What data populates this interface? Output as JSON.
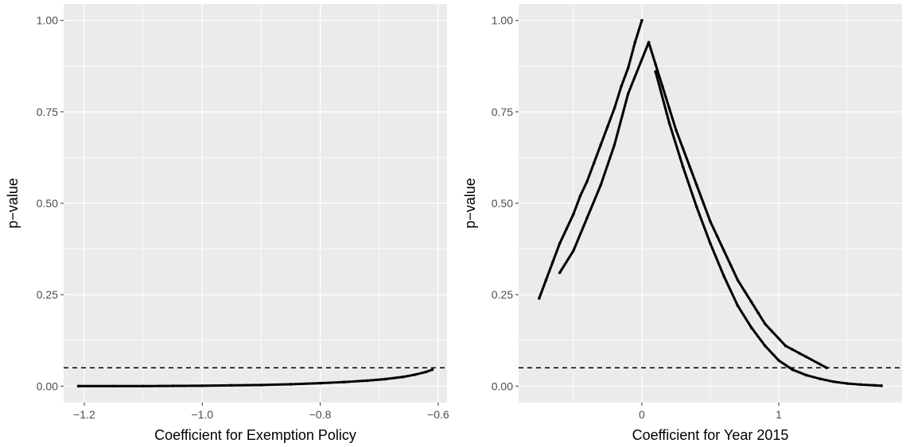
{
  "chart_data": [
    {
      "type": "scatter",
      "title": "",
      "xlabel": "Coefficient for Exemption Policy",
      "ylabel": "p−value",
      "xlim": [
        -1.235,
        -0.585
      ],
      "ylim": [
        -0.045,
        1.045
      ],
      "x_ticks": [
        -1.2,
        -1.0,
        -0.8,
        -0.6
      ],
      "x_tick_labels": [
        "−1.2",
        "−1.0",
        "−0.8",
        "−0.6"
      ],
      "y_ticks": [
        0,
        0.25,
        0.5,
        0.75,
        1
      ],
      "y_tick_labels": [
        "0.00",
        "0.25",
        "0.50",
        "0.75",
        "1.00"
      ],
      "reference_line": {
        "y": 0.05,
        "style": "dashed"
      },
      "grid": true,
      "series": [
        {
          "points": [
            [
              -1.21,
              0.0
            ],
            [
              -1.15,
              0.0
            ],
            [
              -1.1,
              0.0
            ],
            [
              -1.05,
              0.0005
            ],
            [
              -1.0,
              0.001
            ],
            [
              -0.95,
              0.002
            ],
            [
              -0.9,
              0.003
            ],
            [
              -0.85,
              0.005
            ],
            [
              -0.8,
              0.008
            ],
            [
              -0.76,
              0.011
            ],
            [
              -0.72,
              0.015
            ],
            [
              -0.69,
              0.019
            ],
            [
              -0.66,
              0.025
            ],
            [
              -0.64,
              0.031
            ],
            [
              -0.62,
              0.039
            ],
            [
              -0.61,
              0.045
            ]
          ]
        }
      ]
    },
    {
      "type": "scatter",
      "title": "",
      "xlabel": "Coefficient for Year 2015",
      "ylabel": "p−value",
      "xlim": [
        -0.9,
        1.9
      ],
      "ylim": [
        -0.045,
        1.045
      ],
      "x_ticks": [
        0,
        1
      ],
      "x_tick_labels": [
        "0",
        "1"
      ],
      "y_ticks": [
        0,
        0.25,
        0.5,
        0.75,
        1
      ],
      "y_tick_labels": [
        "0.00",
        "0.25",
        "0.50",
        "0.75",
        "1.00"
      ],
      "reference_line": {
        "y": 0.05,
        "style": "dashed"
      },
      "grid": true,
      "series": [
        {
          "points": [
            [
              -0.75,
              0.24
            ],
            [
              -0.7,
              0.29
            ],
            [
              -0.65,
              0.34
            ],
            [
              -0.6,
              0.39
            ],
            [
              -0.55,
              0.43
            ],
            [
              -0.5,
              0.47
            ],
            [
              -0.45,
              0.52
            ],
            [
              -0.4,
              0.56
            ],
            [
              -0.35,
              0.61
            ],
            [
              -0.3,
              0.66
            ],
            [
              -0.25,
              0.71
            ],
            [
              -0.2,
              0.76
            ],
            [
              -0.15,
              0.82
            ],
            [
              -0.1,
              0.87
            ],
            [
              -0.05,
              0.94
            ],
            [
              0,
              1.0
            ],
            [
              -0.6,
              0.31
            ],
            [
              -0.5,
              0.37
            ],
            [
              -0.4,
              0.46
            ],
            [
              -0.3,
              0.55
            ],
            [
              -0.2,
              0.66
            ],
            [
              -0.1,
              0.8
            ],
            [
              0.05,
              0.94
            ],
            [
              0.1,
              0.88
            ],
            [
              0.15,
              0.82
            ],
            [
              0.2,
              0.76
            ],
            [
              0.25,
              0.7
            ],
            [
              0.3,
              0.65
            ],
            [
              0.35,
              0.6
            ],
            [
              0.4,
              0.55
            ],
            [
              0.45,
              0.5
            ],
            [
              0.5,
              0.45
            ],
            [
              0.55,
              0.41
            ],
            [
              0.6,
              0.37
            ],
            [
              0.65,
              0.33
            ],
            [
              0.7,
              0.29
            ],
            [
              0.75,
              0.26
            ],
            [
              0.8,
              0.23
            ],
            [
              0.85,
              0.2
            ],
            [
              0.9,
              0.17
            ],
            [
              0.95,
              0.15
            ],
            [
              1.0,
              0.13
            ],
            [
              1.05,
              0.11
            ],
            [
              1.1,
              0.1
            ],
            [
              1.15,
              0.09
            ],
            [
              1.2,
              0.08
            ],
            [
              1.3,
              0.06
            ],
            [
              1.35,
              0.05
            ],
            [
              0.1,
              0.86
            ],
            [
              0.2,
              0.72
            ],
            [
              0.3,
              0.6
            ],
            [
              0.4,
              0.49
            ],
            [
              0.5,
              0.39
            ],
            [
              0.6,
              0.3
            ],
            [
              0.7,
              0.22
            ],
            [
              0.8,
              0.16
            ],
            [
              0.9,
              0.11
            ],
            [
              1.0,
              0.07
            ],
            [
              1.1,
              0.045
            ],
            [
              1.2,
              0.03
            ],
            [
              1.3,
              0.02
            ],
            [
              1.4,
              0.012
            ],
            [
              1.5,
              0.007
            ],
            [
              1.6,
              0.004
            ],
            [
              1.7,
              0.002
            ],
            [
              1.75,
              0.001
            ]
          ]
        }
      ]
    }
  ]
}
